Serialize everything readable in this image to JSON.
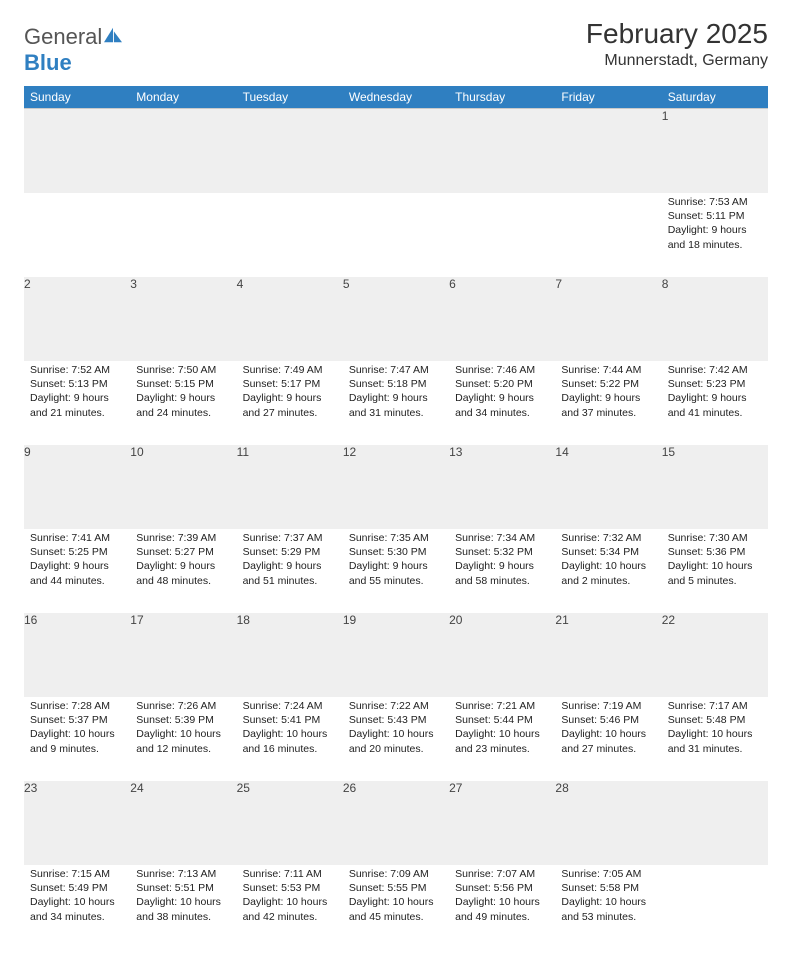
{
  "logo": {
    "word1": "General",
    "word2": "Blue",
    "sail_color": "#2f7fc1"
  },
  "title": {
    "main": "February 2025",
    "sub": "Munnerstadt, Germany"
  },
  "colors": {
    "header_bg": "#2f7fc1",
    "header_text": "#ffffff",
    "daynum_bg": "#efefef",
    "text": "#222222",
    "rule": "#c9c9c9"
  },
  "fonts": {
    "title_size": 28,
    "sub_size": 16,
    "dayhead_size": 12,
    "cell_size": 10.5
  },
  "day_headers": [
    "Sunday",
    "Monday",
    "Tuesday",
    "Wednesday",
    "Thursday",
    "Friday",
    "Saturday"
  ],
  "weeks": [
    {
      "nums": [
        "",
        "",
        "",
        "",
        "",
        "",
        "1"
      ],
      "cells": [
        null,
        null,
        null,
        null,
        null,
        null,
        {
          "sunrise": "Sunrise: 7:53 AM",
          "sunset": "Sunset: 5:11 PM",
          "daylight": "Daylight: 9 hours and 18 minutes."
        }
      ]
    },
    {
      "nums": [
        "2",
        "3",
        "4",
        "5",
        "6",
        "7",
        "8"
      ],
      "cells": [
        {
          "sunrise": "Sunrise: 7:52 AM",
          "sunset": "Sunset: 5:13 PM",
          "daylight": "Daylight: 9 hours and 21 minutes."
        },
        {
          "sunrise": "Sunrise: 7:50 AM",
          "sunset": "Sunset: 5:15 PM",
          "daylight": "Daylight: 9 hours and 24 minutes."
        },
        {
          "sunrise": "Sunrise: 7:49 AM",
          "sunset": "Sunset: 5:17 PM",
          "daylight": "Daylight: 9 hours and 27 minutes."
        },
        {
          "sunrise": "Sunrise: 7:47 AM",
          "sunset": "Sunset: 5:18 PM",
          "daylight": "Daylight: 9 hours and 31 minutes."
        },
        {
          "sunrise": "Sunrise: 7:46 AM",
          "sunset": "Sunset: 5:20 PM",
          "daylight": "Daylight: 9 hours and 34 minutes."
        },
        {
          "sunrise": "Sunrise: 7:44 AM",
          "sunset": "Sunset: 5:22 PM",
          "daylight": "Daylight: 9 hours and 37 minutes."
        },
        {
          "sunrise": "Sunrise: 7:42 AM",
          "sunset": "Sunset: 5:23 PM",
          "daylight": "Daylight: 9 hours and 41 minutes."
        }
      ]
    },
    {
      "nums": [
        "9",
        "10",
        "11",
        "12",
        "13",
        "14",
        "15"
      ],
      "cells": [
        {
          "sunrise": "Sunrise: 7:41 AM",
          "sunset": "Sunset: 5:25 PM",
          "daylight": "Daylight: 9 hours and 44 minutes."
        },
        {
          "sunrise": "Sunrise: 7:39 AM",
          "sunset": "Sunset: 5:27 PM",
          "daylight": "Daylight: 9 hours and 48 minutes."
        },
        {
          "sunrise": "Sunrise: 7:37 AM",
          "sunset": "Sunset: 5:29 PM",
          "daylight": "Daylight: 9 hours and 51 minutes."
        },
        {
          "sunrise": "Sunrise: 7:35 AM",
          "sunset": "Sunset: 5:30 PM",
          "daylight": "Daylight: 9 hours and 55 minutes."
        },
        {
          "sunrise": "Sunrise: 7:34 AM",
          "sunset": "Sunset: 5:32 PM",
          "daylight": "Daylight: 9 hours and 58 minutes."
        },
        {
          "sunrise": "Sunrise: 7:32 AM",
          "sunset": "Sunset: 5:34 PM",
          "daylight": "Daylight: 10 hours and 2 minutes."
        },
        {
          "sunrise": "Sunrise: 7:30 AM",
          "sunset": "Sunset: 5:36 PM",
          "daylight": "Daylight: 10 hours and 5 minutes."
        }
      ]
    },
    {
      "nums": [
        "16",
        "17",
        "18",
        "19",
        "20",
        "21",
        "22"
      ],
      "cells": [
        {
          "sunrise": "Sunrise: 7:28 AM",
          "sunset": "Sunset: 5:37 PM",
          "daylight": "Daylight: 10 hours and 9 minutes."
        },
        {
          "sunrise": "Sunrise: 7:26 AM",
          "sunset": "Sunset: 5:39 PM",
          "daylight": "Daylight: 10 hours and 12 minutes."
        },
        {
          "sunrise": "Sunrise: 7:24 AM",
          "sunset": "Sunset: 5:41 PM",
          "daylight": "Daylight: 10 hours and 16 minutes."
        },
        {
          "sunrise": "Sunrise: 7:22 AM",
          "sunset": "Sunset: 5:43 PM",
          "daylight": "Daylight: 10 hours and 20 minutes."
        },
        {
          "sunrise": "Sunrise: 7:21 AM",
          "sunset": "Sunset: 5:44 PM",
          "daylight": "Daylight: 10 hours and 23 minutes."
        },
        {
          "sunrise": "Sunrise: 7:19 AM",
          "sunset": "Sunset: 5:46 PM",
          "daylight": "Daylight: 10 hours and 27 minutes."
        },
        {
          "sunrise": "Sunrise: 7:17 AM",
          "sunset": "Sunset: 5:48 PM",
          "daylight": "Daylight: 10 hours and 31 minutes."
        }
      ]
    },
    {
      "nums": [
        "23",
        "24",
        "25",
        "26",
        "27",
        "28",
        ""
      ],
      "cells": [
        {
          "sunrise": "Sunrise: 7:15 AM",
          "sunset": "Sunset: 5:49 PM",
          "daylight": "Daylight: 10 hours and 34 minutes."
        },
        {
          "sunrise": "Sunrise: 7:13 AM",
          "sunset": "Sunset: 5:51 PM",
          "daylight": "Daylight: 10 hours and 38 minutes."
        },
        {
          "sunrise": "Sunrise: 7:11 AM",
          "sunset": "Sunset: 5:53 PM",
          "daylight": "Daylight: 10 hours and 42 minutes."
        },
        {
          "sunrise": "Sunrise: 7:09 AM",
          "sunset": "Sunset: 5:55 PM",
          "daylight": "Daylight: 10 hours and 45 minutes."
        },
        {
          "sunrise": "Sunrise: 7:07 AM",
          "sunset": "Sunset: 5:56 PM",
          "daylight": "Daylight: 10 hours and 49 minutes."
        },
        {
          "sunrise": "Sunrise: 7:05 AM",
          "sunset": "Sunset: 5:58 PM",
          "daylight": "Daylight: 10 hours and 53 minutes."
        },
        null
      ]
    }
  ]
}
